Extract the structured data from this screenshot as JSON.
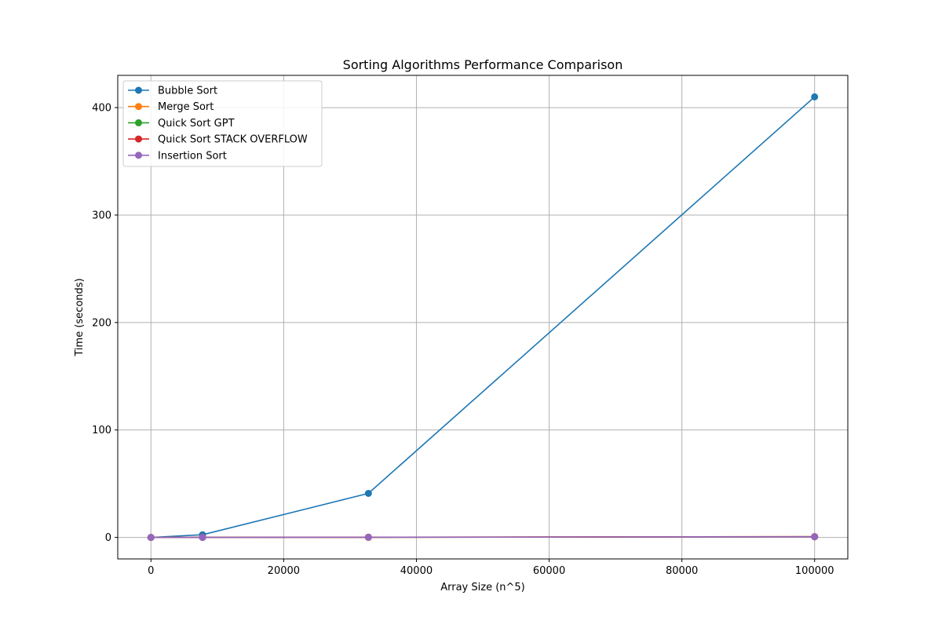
{
  "chart_data": {
    "type": "line",
    "title": "Sorting Algorithms Performance Comparison",
    "xlabel": "Array Size (n^5)",
    "ylabel": "Time (seconds)",
    "xlim": [
      -5000,
      105000
    ],
    "ylim": [
      -20,
      430
    ],
    "xticks": [
      0,
      20000,
      40000,
      60000,
      80000,
      100000
    ],
    "yticks": [
      0,
      100,
      200,
      300,
      400
    ],
    "grid": true,
    "legend_position": "top-left",
    "x": [
      1,
      7776,
      32768,
      100000
    ],
    "series": [
      {
        "name": "Bubble Sort",
        "color": "#1f77b4",
        "values": [
          0.0,
          2.5,
          41.0,
          410.0
        ]
      },
      {
        "name": "Merge Sort",
        "color": "#ff7f0e",
        "values": [
          0.0,
          0.05,
          0.2,
          0.8
        ]
      },
      {
        "name": "Quick Sort GPT",
        "color": "#2ca02c",
        "values": [
          0.0,
          0.03,
          0.15,
          0.6
        ]
      },
      {
        "name": "Quick Sort STACK OVERFLOW",
        "color": "#d62728",
        "values": [
          0.0,
          0.03,
          0.15,
          0.6
        ]
      },
      {
        "name": "Insertion Sort",
        "color": "#9467bd",
        "values": [
          0.0,
          0.04,
          0.18,
          0.7
        ]
      }
    ]
  }
}
